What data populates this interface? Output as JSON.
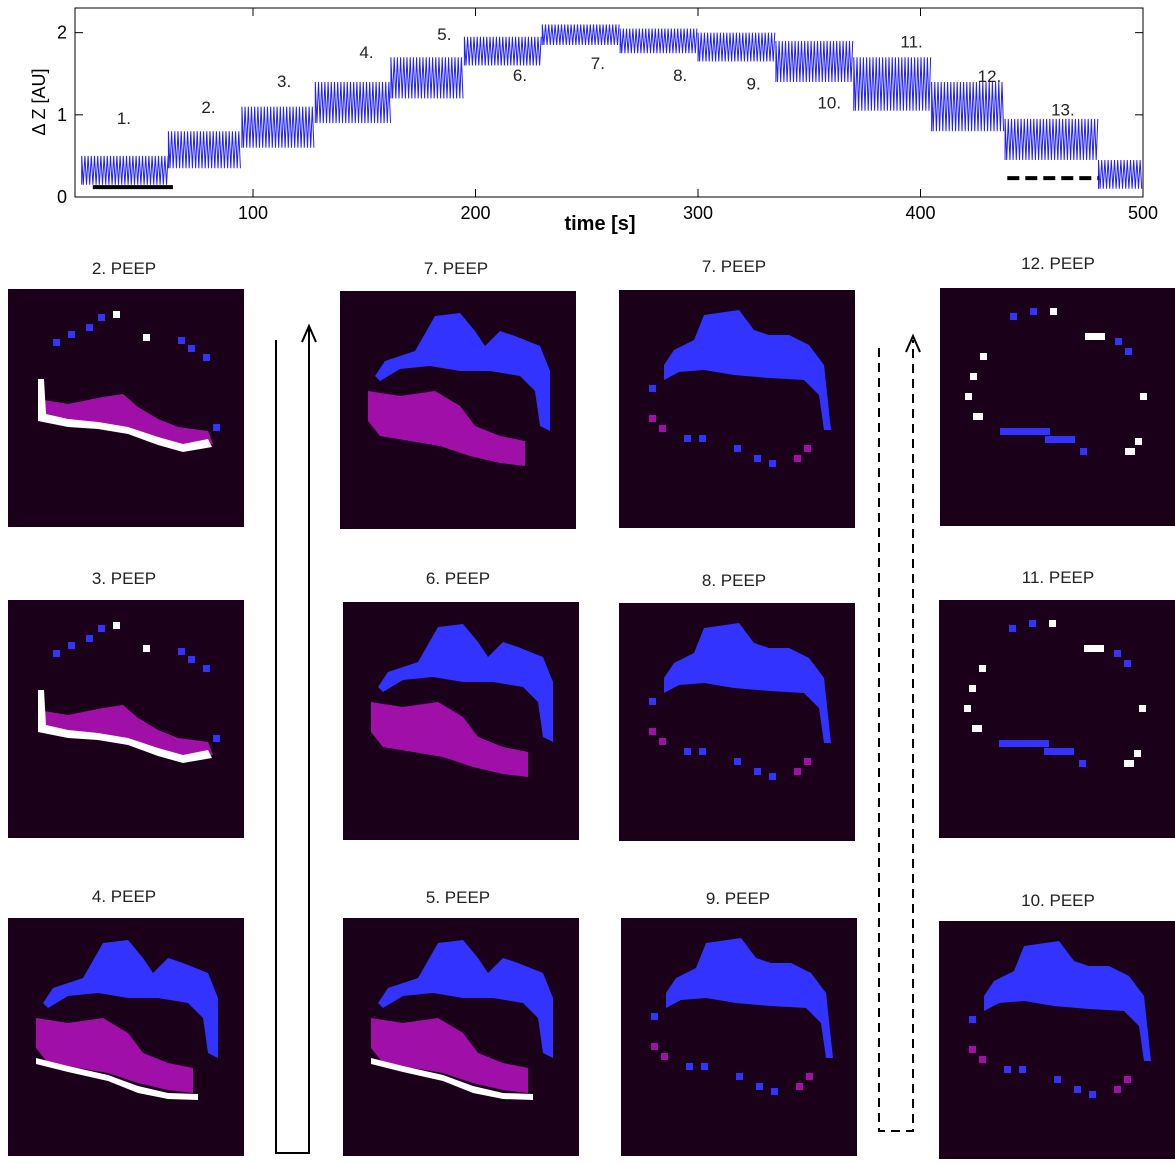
{
  "chart_data": {
    "type": "band",
    "y_label": "Δ Z [AU]",
    "x_label": "time [s]",
    "xlim": [
      20,
      500
    ],
    "ylim": [
      0,
      2.3
    ],
    "xticks": [
      100,
      200,
      300,
      400,
      500
    ],
    "yticks": [
      0,
      1,
      2
    ],
    "color": "#1f1fff",
    "segments": [
      {
        "x": [
          23,
          62
        ],
        "low": 0.15,
        "high": 0.5
      },
      {
        "x": [
          62,
          95
        ],
        "low": 0.35,
        "high": 0.8
      },
      {
        "x": [
          95,
          128
        ],
        "low": 0.6,
        "high": 1.1
      },
      {
        "x": [
          128,
          162
        ],
        "low": 0.9,
        "high": 1.4
      },
      {
        "x": [
          162,
          195
        ],
        "low": 1.2,
        "high": 1.7
      },
      {
        "x": [
          195,
          230
        ],
        "low": 1.6,
        "high": 1.95
      },
      {
        "x": [
          230,
          265
        ],
        "low": 1.85,
        "high": 2.1
      },
      {
        "x": [
          265,
          300
        ],
        "low": 1.75,
        "high": 2.05
      },
      {
        "x": [
          300,
          335
        ],
        "low": 1.65,
        "high": 2.0
      },
      {
        "x": [
          335,
          370
        ],
        "low": 1.4,
        "high": 1.9
      },
      {
        "x": [
          370,
          405
        ],
        "low": 1.05,
        "high": 1.7
      },
      {
        "x": [
          405,
          438
        ],
        "low": 0.8,
        "high": 1.4
      },
      {
        "x": [
          438,
          480
        ],
        "low": 0.45,
        "high": 0.95
      },
      {
        "x": [
          480,
          500
        ],
        "low": 0.1,
        "high": 0.45
      }
    ],
    "annotations": [
      {
        "text": "1.",
        "x": 42,
        "y": 0.89
      },
      {
        "text": "2.",
        "x": 80,
        "y": 1.02
      },
      {
        "text": "3.",
        "x": 114,
        "y": 1.34
      },
      {
        "text": "4.",
        "x": 151,
        "y": 1.69
      },
      {
        "text": "5.",
        "x": 186,
        "y": 1.91
      },
      {
        "text": "6.",
        "x": 220,
        "y": 1.41
      },
      {
        "text": "7.",
        "x": 255,
        "y": 1.56
      },
      {
        "text": "8.",
        "x": 292,
        "y": 1.41
      },
      {
        "text": "9.",
        "x": 325,
        "y": 1.31
      },
      {
        "text": "10.",
        "x": 359,
        "y": 1.08
      },
      {
        "text": "11.",
        "x": 396,
        "y": 1.82
      },
      {
        "text": "12.",
        "x": 431,
        "y": 1.4
      },
      {
        "text": "13.",
        "x": 464,
        "y": 0.99
      }
    ],
    "markers": [
      {
        "x": [
          28,
          64
        ],
        "y": 0.12,
        "style": "solid"
      },
      {
        "x": [
          439,
          480
        ],
        "y": 0.23,
        "style": "dashed"
      }
    ]
  },
  "panels": [
    {
      "title": "2. PEEP"
    },
    {
      "title": "3. PEEP"
    },
    {
      "title": "4. PEEP"
    },
    {
      "title": "7. PEEP"
    },
    {
      "title": "6. PEEP"
    },
    {
      "title": "5. PEEP"
    },
    {
      "title": "7. PEEP"
    },
    {
      "title": "8. PEEP"
    },
    {
      "title": "9. PEEP"
    },
    {
      "title": "12. PEEP"
    },
    {
      "title": "11. PEEP"
    },
    {
      "title": "10. PEEP"
    }
  ]
}
